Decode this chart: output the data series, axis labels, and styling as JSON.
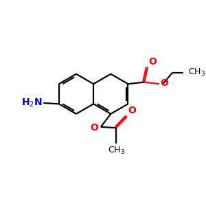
{
  "bg_color": "#ffffff",
  "bond_color": "#000000",
  "o_color": "#ff0000",
  "n_color": "#0000cc",
  "lw": 1.6,
  "figsize": [
    3.0,
    3.0
  ],
  "dpi": 100,
  "xlim": [
    0,
    10
  ],
  "ylim": [
    0,
    10
  ]
}
